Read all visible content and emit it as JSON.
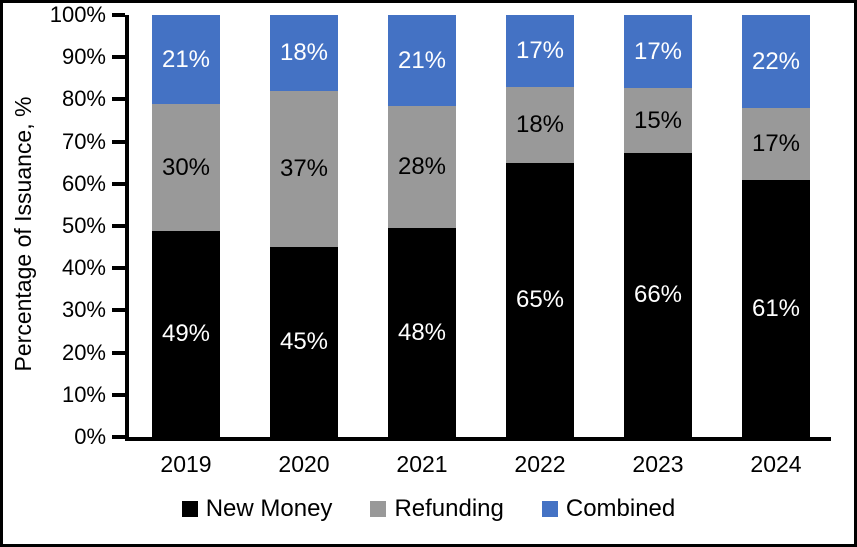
{
  "chart_data": {
    "type": "bar",
    "variant": "stacked-100",
    "title": "",
    "xlabel": "",
    "ylabel": "Percentage of Issuance, %",
    "categories": [
      "2019",
      "2020",
      "2021",
      "2022",
      "2023",
      "2024"
    ],
    "series": [
      {
        "name": "New Money",
        "color": "#000000",
        "label_color": "#FFFFFF",
        "values": [
          49,
          45,
          48,
          65,
          66,
          61
        ]
      },
      {
        "name": "Refunding",
        "color": "#999999",
        "label_color": "#000000",
        "values": [
          30,
          37,
          28,
          18,
          15,
          17
        ]
      },
      {
        "name": "Combined",
        "color": "#4472C4",
        "label_color": "#FFFFFF",
        "values": [
          21,
          18,
          21,
          17,
          17,
          22
        ]
      }
    ],
    "value_suffix": "%",
    "y_ticks": [
      "0%",
      "10%",
      "20%",
      "30%",
      "40%",
      "50%",
      "60%",
      "70%",
      "80%",
      "90%",
      "100%"
    ],
    "ylim": [
      0,
      100
    ],
    "grid": false,
    "legend_position": "bottom"
  },
  "colors": {
    "axis": "#000000",
    "background": "#FFFFFF",
    "frame_border": "#000000"
  }
}
